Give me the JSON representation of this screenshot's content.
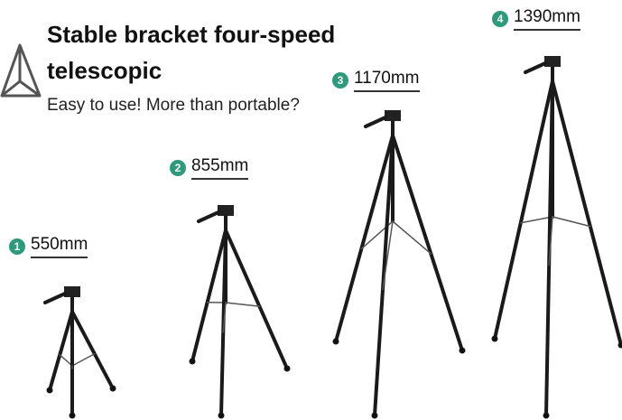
{
  "header": {
    "title": "Stable bracket four-speed telescopic",
    "subtitle": "Easy to use! More than portable?"
  },
  "tripods": [
    {
      "badge": "1",
      "height": "550mm"
    },
    {
      "badge": "2",
      "height": "855mm"
    },
    {
      "badge": "3",
      "height": "1170mm"
    },
    {
      "badge": "4",
      "height": "1390mm"
    }
  ]
}
